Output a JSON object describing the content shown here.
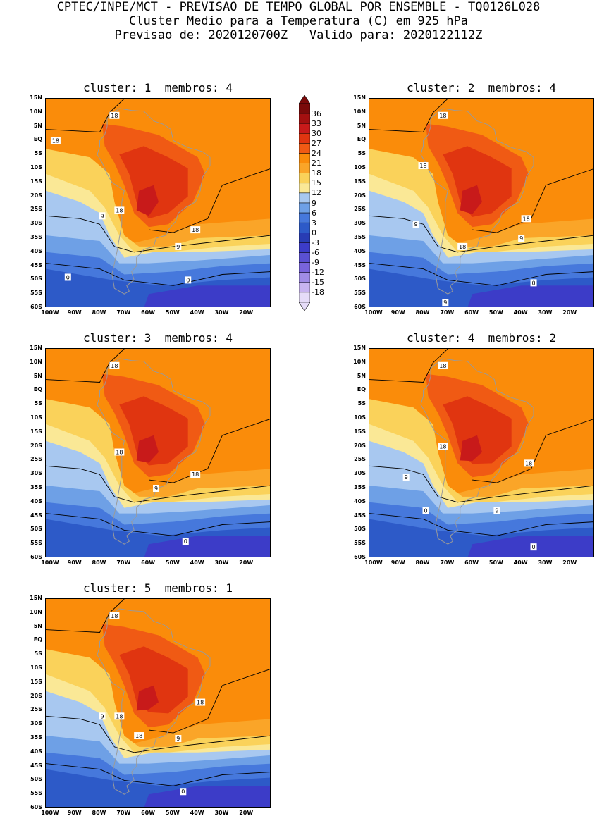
{
  "header": {
    "line1": "CPTEC/INPE/MCT - PREVISAO DE TEMPO GLOBAL POR ENSEMBLE - TQ0126L028",
    "line2": "Cluster Medio para a Temperatura (C) em 925 hPa",
    "line3": "Previsao de: 2020120700Z   Valido para: 2020122112Z"
  },
  "axes": {
    "y_ticks": [
      "15N",
      "10N",
      "5N",
      "EQ",
      "5S",
      "10S",
      "15S",
      "20S",
      "25S",
      "30S",
      "35S",
      "40S",
      "45S",
      "50S",
      "55S",
      "60S"
    ],
    "x_ticks": [
      "100W",
      "90W",
      "80W",
      "70W",
      "60W",
      "50W",
      "40W",
      "30W",
      "20W"
    ]
  },
  "colorbar": {
    "levels": [
      "36",
      "33",
      "30",
      "27",
      "24",
      "21",
      "18",
      "15",
      "12",
      "9",
      "6",
      "3",
      "0",
      "-3",
      "-6",
      "-9",
      "-12",
      "-15",
      "-18"
    ],
    "colors": [
      "#7a0a0a",
      "#a31010",
      "#c81a1a",
      "#e03510",
      "#f05a14",
      "#fa8c0a",
      "#faa528",
      "#fad25a",
      "#fae896",
      "#a8c8f0",
      "#6ea0e6",
      "#4678dc",
      "#2d5ac8",
      "#283cb4",
      "#3c3cc8",
      "#5a50d2",
      "#7864dc",
      "#a08ce6",
      "#c8b4f0",
      "#e6dcf8"
    ]
  },
  "panels": [
    {
      "title": "cluster: 1  membros: 4",
      "labels": [
        {
          "t": "18",
          "lon": -74,
          "lat": 9
        },
        {
          "t": "18",
          "lon": -98,
          "lat": 0
        },
        {
          "t": "18",
          "lon": -72,
          "lat": -25
        },
        {
          "t": "18",
          "lon": -41,
          "lat": -32
        },
        {
          "t": "9",
          "lon": -79,
          "lat": -27
        },
        {
          "t": "9",
          "lon": -48,
          "lat": -38
        },
        {
          "t": "0",
          "lon": -93,
          "lat": -49
        },
        {
          "t": "0",
          "lon": -44,
          "lat": -50
        }
      ]
    },
    {
      "title": "cluster: 2  membros: 4",
      "labels": [
        {
          "t": "18",
          "lon": -72,
          "lat": 9
        },
        {
          "t": "18",
          "lon": -80,
          "lat": -9
        },
        {
          "t": "18",
          "lon": -38,
          "lat": -28
        },
        {
          "t": "18",
          "lon": -64,
          "lat": -38
        },
        {
          "t": "9",
          "lon": -83,
          "lat": -30
        },
        {
          "t": "9",
          "lon": -40,
          "lat": -35
        },
        {
          "t": "9",
          "lon": -71,
          "lat": -58
        },
        {
          "t": "0",
          "lon": -35,
          "lat": -51
        }
      ]
    },
    {
      "title": "cluster: 3  membros: 4",
      "labels": [
        {
          "t": "18",
          "lon": -74,
          "lat": 9
        },
        {
          "t": "18",
          "lon": -72,
          "lat": -22
        },
        {
          "t": "18",
          "lon": -41,
          "lat": -30
        },
        {
          "t": "9",
          "lon": -57,
          "lat": -35
        },
        {
          "t": "0",
          "lon": -45,
          "lat": -54
        }
      ]
    },
    {
      "title": "cluster: 4  membros: 2",
      "labels": [
        {
          "t": "18",
          "lon": -72,
          "lat": 9
        },
        {
          "t": "18",
          "lon": -72,
          "lat": -20
        },
        {
          "t": "18",
          "lon": -37,
          "lat": -26
        },
        {
          "t": "9",
          "lon": -87,
          "lat": -31
        },
        {
          "t": "9",
          "lon": -50,
          "lat": -43
        },
        {
          "t": "0",
          "lon": -79,
          "lat": -43
        },
        {
          "t": "0",
          "lon": -35,
          "lat": -56
        }
      ]
    },
    {
      "title": "cluster: 5  membros: 1",
      "labels": [
        {
          "t": "18",
          "lon": -74,
          "lat": 9
        },
        {
          "t": "18",
          "lon": -72,
          "lat": -27
        },
        {
          "t": "18",
          "lon": -64,
          "lat": -34
        },
        {
          "t": "18",
          "lon": -39,
          "lat": -22
        },
        {
          "t": "9",
          "lon": -79,
          "lat": -27
        },
        {
          "t": "9",
          "lon": -48,
          "lat": -35
        },
        {
          "t": "0",
          "lon": -46,
          "lat": -54
        }
      ]
    }
  ]
}
